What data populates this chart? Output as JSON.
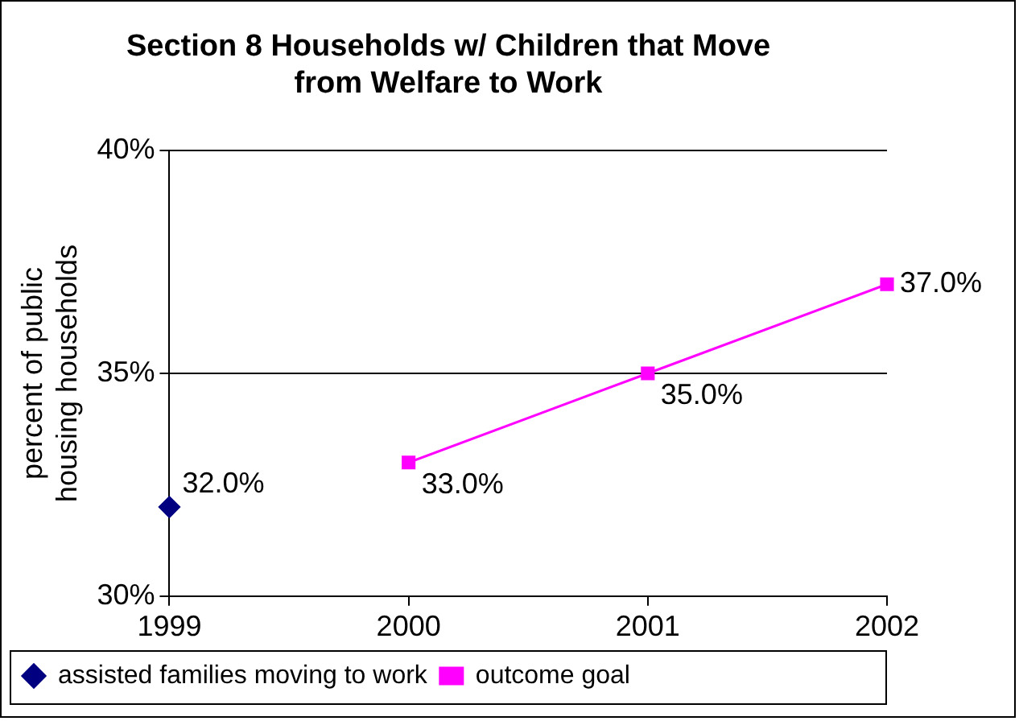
{
  "chart_data": {
    "type": "line",
    "title": "Section 8 Households w/ Children that Move from Welfare to Work",
    "ylabel": "percent of public housing households",
    "categories": [
      "1999",
      "2000",
      "2001",
      "2002"
    ],
    "series": [
      {
        "name": "assisted families moving to work",
        "color": "#000080",
        "marker": "diamond",
        "values": [
          32,
          null,
          null,
          null
        ],
        "value_labels": [
          "32.0%",
          null,
          null,
          null
        ]
      },
      {
        "name": "outcome goal",
        "color": "#ff00ff",
        "marker": "square",
        "values": [
          null,
          33,
          35,
          37
        ],
        "value_labels": [
          null,
          "33.0%",
          "35.0%",
          "37.0%"
        ]
      }
    ],
    "ylim": [
      30,
      40
    ],
    "yticks": [
      {
        "value": 30,
        "label": "30%"
      },
      {
        "value": 35,
        "label": "35%"
      },
      {
        "value": 40,
        "label": "40%"
      }
    ],
    "grid": "y",
    "legend": "bottom",
    "line_style": "solid"
  }
}
